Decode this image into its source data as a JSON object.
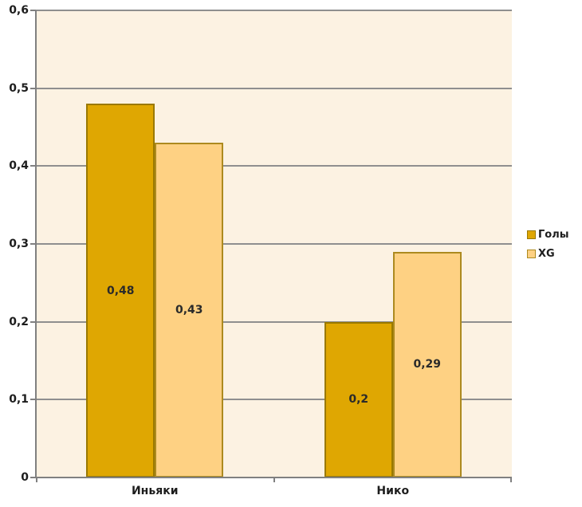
{
  "chart_data": {
    "type": "bar",
    "title": "",
    "xlabel": "",
    "ylabel": "",
    "categories": [
      "Иньяки",
      "Нико"
    ],
    "series": [
      {
        "name": "Голы",
        "values": [
          0.48,
          0.2
        ],
        "value_labels": [
          "0,48",
          "0,2"
        ],
        "fill": "#DFA702",
        "border": "#9A7900"
      },
      {
        "name": "XG",
        "values": [
          0.43,
          0.29
        ],
        "value_labels": [
          "0,43",
          "0,29"
        ],
        "fill": "#FED183",
        "border": "#AD8A1F"
      }
    ],
    "ylim": [
      0,
      0.6
    ],
    "ytick_step": 0.1,
    "ytick_labels": [
      "0",
      "0,1",
      "0,2",
      "0,3",
      "0,4",
      "0,5",
      "0,6"
    ],
    "grid": true,
    "legend_position": "right",
    "colors": {
      "plot_background": "#FCF2E2",
      "page_background": "#FFFFFF",
      "gridline": "#8F8F8F",
      "axis": "#808080",
      "text": "#1D1D1D"
    }
  }
}
